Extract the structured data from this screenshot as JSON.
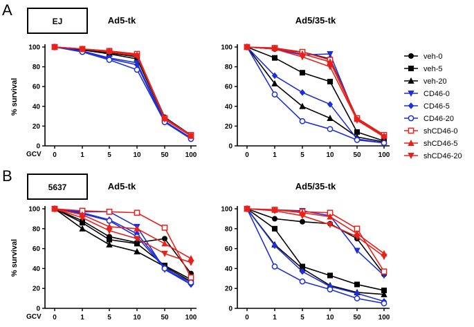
{
  "figure": {
    "panels": [
      {
        "letter": "A",
        "cell_line": "EJ"
      },
      {
        "letter": "B",
        "cell_line": "5637"
      }
    ],
    "gcv_label": "GCV",
    "legend": [
      {
        "name": "veh-0",
        "color": "#000000",
        "marker": "circle-filled"
      },
      {
        "name": "veh-5",
        "color": "#000000",
        "marker": "square-filled"
      },
      {
        "name": "veh-20",
        "color": "#000000",
        "marker": "triangle-up-filled"
      },
      {
        "name": "CD46-0",
        "color": "#1f2fd6",
        "marker": "triangle-down-filled"
      },
      {
        "name": "CD46-5",
        "color": "#1f2fd6",
        "marker": "diamond-filled"
      },
      {
        "name": "CD46-20",
        "color": "#1f2fd6",
        "marker": "circle-open"
      },
      {
        "name": "shCD46-0",
        "color": "#e8211a",
        "marker": "square-open"
      },
      {
        "name": "shCD46-5",
        "color": "#e8211a",
        "marker": "triangle-up-filled"
      },
      {
        "name": "shCD46-20",
        "color": "#e8211a",
        "marker": "triangle-down-filled"
      }
    ]
  },
  "chart_data": [
    {
      "type": "line",
      "panel": "A",
      "title": "Ad5-tk",
      "ylabel": "% survival",
      "xlabel": "GCV",
      "categories": [
        "0",
        "1",
        "5",
        "10",
        "50",
        "100"
      ],
      "ylim": [
        0,
        100
      ],
      "yticks": [
        0,
        20,
        40,
        60,
        80,
        100
      ],
      "series": [
        {
          "name": "veh-0",
          "values": [
            100,
            98,
            95,
            92,
            29,
            11
          ]
        },
        {
          "name": "veh-5",
          "values": [
            100,
            98,
            94,
            90,
            28,
            10
          ]
        },
        {
          "name": "veh-20",
          "values": [
            100,
            97,
            93,
            88,
            27,
            10
          ]
        },
        {
          "name": "CD46-0",
          "values": [
            100,
            96,
            89,
            84,
            25,
            8
          ]
        },
        {
          "name": "CD46-5",
          "values": [
            100,
            96,
            88,
            82,
            24,
            8
          ]
        },
        {
          "name": "CD46-20",
          "values": [
            100,
            95,
            87,
            77,
            24,
            7
          ]
        },
        {
          "name": "shCD46-0",
          "values": [
            100,
            98,
            96,
            93,
            28,
            11
          ]
        },
        {
          "name": "shCD46-5",
          "values": [
            100,
            98,
            96,
            92,
            28,
            10
          ]
        },
        {
          "name": "shCD46-20",
          "values": [
            100,
            98,
            95,
            91,
            27,
            10
          ]
        }
      ]
    },
    {
      "type": "line",
      "panel": "A",
      "title": "Ad5/35-tk",
      "ylabel": "",
      "xlabel": "",
      "categories": [
        "0",
        "1",
        "5",
        "10",
        "50",
        "100"
      ],
      "ylim": [
        0,
        100
      ],
      "yticks": [
        0,
        20,
        40,
        60,
        80,
        100
      ],
      "series": [
        {
          "name": "veh-0",
          "values": [
            100,
            98,
            95,
            88,
            28,
            11
          ]
        },
        {
          "name": "veh-5",
          "values": [
            100,
            89,
            74,
            65,
            14,
            5
          ]
        },
        {
          "name": "veh-20",
          "values": [
            100,
            63,
            40,
            28,
            9,
            4
          ]
        },
        {
          "name": "CD46-0",
          "values": [
            100,
            98,
            92,
            93,
            26,
            10
          ]
        },
        {
          "name": "CD46-5",
          "values": [
            100,
            71,
            54,
            42,
            7,
            3
          ]
        },
        {
          "name": "CD46-20",
          "values": [
            100,
            52,
            25,
            17,
            6,
            3
          ]
        },
        {
          "name": "shCD46-0",
          "values": [
            100,
            99,
            95,
            87,
            28,
            11
          ]
        },
        {
          "name": "shCD46-5",
          "values": [
            100,
            99,
            93,
            85,
            27,
            10
          ]
        },
        {
          "name": "shCD46-20",
          "values": [
            100,
            98,
            90,
            80,
            26,
            9
          ]
        }
      ]
    },
    {
      "type": "line",
      "panel": "B",
      "title": "Ad5-tk",
      "ylabel": "% survival",
      "xlabel": "GCV",
      "categories": [
        "0",
        "1",
        "5",
        "10",
        "50",
        "100"
      ],
      "ylim": [
        0,
        100
      ],
      "yticks": [
        0,
        20,
        40,
        60,
        80,
        100
      ],
      "series": [
        {
          "name": "veh-0",
          "values": [
            100,
            88,
            72,
            66,
            70,
            35
          ]
        },
        {
          "name": "veh-5",
          "values": [
            100,
            86,
            69,
            65,
            43,
            29
          ]
        },
        {
          "name": "veh-20",
          "values": [
            100,
            80,
            64,
            57,
            42,
            27
          ]
        },
        {
          "name": "CD46-0",
          "values": [
            100,
            97,
            97,
            82,
            39,
            24
          ]
        },
        {
          "name": "CD46-5",
          "values": [
            100,
            96,
            89,
            75,
            41,
            24
          ]
        },
        {
          "name": "CD46-20",
          "values": [
            100,
            95,
            88,
            72,
            40,
            26
          ]
        },
        {
          "name": "shCD46-0",
          "values": [
            100,
            98,
            97,
            96,
            81,
            31
          ]
        },
        {
          "name": "shCD46-5",
          "values": [
            100,
            94,
            82,
            80,
            65,
            50
          ]
        },
        {
          "name": "shCD46-20",
          "values": [
            100,
            91,
            78,
            70,
            55,
            46
          ]
        }
      ]
    },
    {
      "type": "line",
      "panel": "B",
      "title": "Ad5/35-tk",
      "ylabel": "",
      "xlabel": "",
      "categories": [
        "0",
        "1",
        "5",
        "10",
        "50",
        "100"
      ],
      "ylim": [
        0,
        100
      ],
      "yticks": [
        0,
        20,
        40,
        60,
        80,
        100
      ],
      "series": [
        {
          "name": "veh-0",
          "values": [
            100,
            90,
            87,
            85,
            70,
            34
          ]
        },
        {
          "name": "veh-5",
          "values": [
            100,
            80,
            42,
            33,
            24,
            18
          ]
        },
        {
          "name": "veh-20",
          "values": [
            100,
            64,
            40,
            23,
            16,
            14
          ]
        },
        {
          "name": "CD46-0",
          "values": [
            100,
            99,
            98,
            93,
            58,
            33
          ]
        },
        {
          "name": "CD46-5",
          "values": [
            100,
            63,
            37,
            22,
            15,
            7
          ]
        },
        {
          "name": "CD46-20",
          "values": [
            100,
            42,
            27,
            19,
            10,
            5
          ]
        },
        {
          "name": "shCD46-0",
          "values": [
            100,
            99,
            97,
            96,
            80,
            37
          ]
        },
        {
          "name": "shCD46-5",
          "values": [
            100,
            99,
            96,
            92,
            75,
            55
          ]
        },
        {
          "name": "shCD46-20",
          "values": [
            100,
            98,
            93,
            84,
            72,
            52
          ]
        }
      ]
    }
  ]
}
